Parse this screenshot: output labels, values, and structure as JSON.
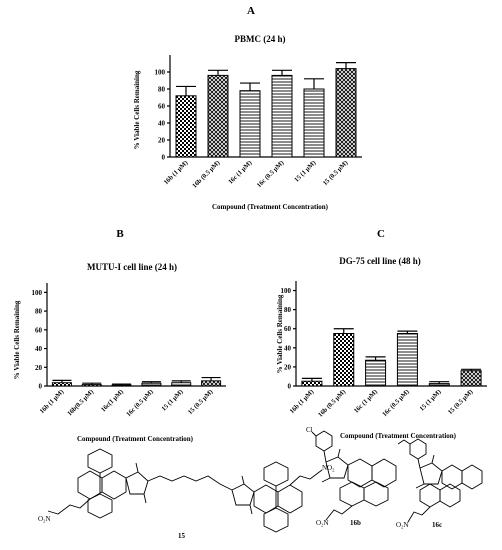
{
  "panels": [
    {
      "letter": "A",
      "chart_data": {
        "type": "bar",
        "title": "PBMC (24 h)",
        "ylabel": "% Viable Cells Remaining",
        "xlabel": "Compound (Treatment Concentration)",
        "categories": [
          "16b (1 μM)",
          "16b (0.5 μM)",
          "16c (1 μM)",
          "16c (0.5 μM)",
          "15 (1 μM)",
          "15 (0.5 μM)"
        ],
        "values": [
          72,
          96,
          78,
          96,
          80,
          104
        ],
        "errors": [
          11,
          6,
          9,
          6,
          12,
          7
        ],
        "ylim": [
          0,
          120
        ],
        "yticks": [
          0,
          20,
          40,
          60,
          80,
          100
        ],
        "patterns": [
          "check",
          "hatch",
          "hlines",
          "hlines",
          "hlines",
          "hatch"
        ]
      }
    },
    {
      "letter": "B",
      "chart_data": {
        "type": "bar",
        "title": "MUTU-I cell line (24 h)",
        "ylabel": "% Viable Cells Remaining",
        "xlabel": "Compound  (Treatment Concentration)",
        "categories": [
          "16b (1 μM)",
          "16b(0.5 μM)",
          "16c(1 μM)",
          "16c (0.5 μM)",
          "15 (1 μM)",
          "15 (0.5 μM)"
        ],
        "values": [
          3.5,
          1.5,
          1,
          3,
          3.5,
          5.5
        ],
        "errors": [
          2.5,
          1.5,
          1,
          1.5,
          2,
          3.5
        ],
        "ylim": [
          0,
          110
        ],
        "yticks": [
          0,
          20,
          40,
          60,
          80,
          100
        ],
        "patterns": [
          "check",
          "check",
          "hlines",
          "hlines",
          "hlines",
          "hatch"
        ]
      }
    },
    {
      "letter": "C",
      "chart_data": {
        "type": "bar",
        "title": "DG-75 cell line (48 h)",
        "ylabel": "% Viable Cells Remaining",
        "xlabel": "Compound  (Treatment Concentration)",
        "categories": [
          "16b (1 μM)",
          "16b (0.5 μM)",
          "16c (1 μM)",
          "16c (0.5 μM)",
          "15 (1 μM)",
          "15 (0.5 μM)"
        ],
        "values": [
          5,
          55,
          27,
          55,
          2.5,
          16
        ],
        "errors": [
          3,
          5,
          3.5,
          2.5,
          2,
          1.5
        ],
        "ylim": [
          0,
          110
        ],
        "yticks": [
          0,
          20,
          40,
          60,
          80,
          100
        ],
        "patterns": [
          "check",
          "check",
          "hlines",
          "hlines",
          "hlines",
          "hatch"
        ]
      }
    }
  ],
  "structures": {
    "compound_15": "15",
    "compound_16b": "16b",
    "compound_16c": "16c",
    "o2n_left": "O₂N",
    "no2_right": "NO₂",
    "o2n_16b": "O₂N",
    "o2n_16c": "O₂N",
    "cl": "Cl",
    "o_labels": "O",
    "n_labels": "N"
  }
}
